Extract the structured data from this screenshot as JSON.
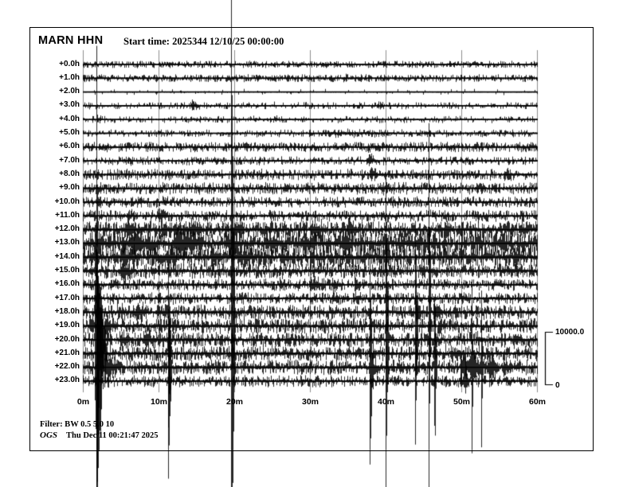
{
  "header": {
    "station": "MARN HHN",
    "start_time": "Start time: 2025344 12/10/25 00:00:00"
  },
  "footer": {
    "filter_line": "Filter: BW 0.5 5.0 10",
    "agency": "OGS",
    "timestamp_line": "Thu Dec 11 00:21:47 2025"
  },
  "scale_bar": {
    "max_label": "10000.0",
    "min_label": "0"
  },
  "colors": {
    "background": "#ffffff",
    "trace": "#000000",
    "frame": "#000000",
    "grid": "#8c8c8c"
  },
  "chart_data": {
    "type": "line",
    "variant": "helicorder seismogram, 24 hourly traces, 60 minutes per line",
    "title": "MARN HHN",
    "station": "MARN",
    "channel": "HHN",
    "start": "2025344 12/10/25 00:00:00",
    "x_ticks": [
      "0m",
      "10m",
      "20m",
      "30m",
      "40m",
      "50m",
      "60m"
    ],
    "x_tick_minutes": [
      0,
      10,
      20,
      30,
      40,
      50,
      60
    ],
    "xlim": [
      0,
      60
    ],
    "minutes_per_line": 60,
    "hours": 24,
    "amplitude_scale_counts": {
      "min": 0,
      "max": 10000
    },
    "rows": [
      {
        "label": "+0.0h",
        "base": 140,
        "tp": 0.45,
        "ta": 280,
        "events": []
      },
      {
        "label": "+1.0h",
        "base": 160,
        "tp": 0.5,
        "ta": 300,
        "events": [
          [
            34,
            6,
            400
          ]
        ]
      },
      {
        "label": "+2.0h",
        "base": 100,
        "tp": 0.08,
        "ta": 250,
        "events": []
      },
      {
        "label": "+3.0h",
        "base": 140,
        "tp": 0.3,
        "ta": 280,
        "events": [
          [
            14.2,
            2,
            900
          ],
          [
            25,
            1,
            350
          ],
          [
            38.8,
            1.5,
            500
          ],
          [
            53.8,
            1.2,
            600
          ]
        ]
      },
      {
        "label": "+4.0h",
        "base": 140,
        "tp": 0.3,
        "ta": 280,
        "events": [
          [
            1.8,
            0.8,
            1000
          ],
          [
            20.5,
            0.8,
            400
          ],
          [
            22.5,
            1.5,
            500
          ],
          [
            25.2,
            1.4,
            500
          ],
          [
            46.5,
            1,
            380
          ],
          [
            56.2,
            0.8,
            600
          ]
        ]
      },
      {
        "label": "+5.0h",
        "base": 150,
        "tp": 0.35,
        "ta": 300,
        "events": [
          [
            30,
            30,
            350
          ],
          [
            45,
            2,
            400
          ]
        ]
      },
      {
        "label": "+6.0h",
        "base": 240,
        "tp": 0.5,
        "ta": 380,
        "events": [
          [
            37.5,
            1,
            550
          ]
        ]
      },
      {
        "label": "+7.0h",
        "base": 200,
        "tp": 0.4,
        "ta": 330,
        "events": [
          [
            6.3,
            0.4,
            650
          ],
          [
            30,
            1,
            450
          ],
          [
            37.6,
            1.8,
            1100
          ],
          [
            56,
            1,
            450
          ]
        ]
      },
      {
        "label": "+8.0h",
        "base": 260,
        "tp": 0.45,
        "ta": 420,
        "events": [
          [
            8,
            1,
            500
          ],
          [
            23,
            1,
            500
          ],
          [
            37.8,
            2.2,
            950
          ],
          [
            44,
            1,
            500
          ],
          [
            55.5,
            2.5,
            800
          ]
        ]
      },
      {
        "label": "+9.0h",
        "base": 280,
        "tp": 0.5,
        "ta": 450,
        "events": [
          [
            33,
            1,
            500
          ],
          [
            39.3,
            2,
            950
          ],
          [
            47,
            1,
            500
          ],
          [
            58,
            1,
            600
          ]
        ]
      },
      {
        "label": "+10.0h",
        "base": 260,
        "tp": 0.45,
        "ta": 420,
        "events": [
          [
            2,
            1,
            650
          ],
          [
            10.4,
            1.6,
            800
          ],
          [
            28.4,
            1,
            650
          ],
          [
            44.5,
            1,
            500
          ],
          [
            58,
            1,
            500
          ]
        ]
      },
      {
        "label": "+11.0h",
        "base": 280,
        "tp": 0.45,
        "ta": 450,
        "events": [
          [
            5.8,
            2,
            800
          ],
          [
            9.8,
            2.2,
            950
          ],
          [
            21,
            1,
            650
          ],
          [
            40,
            1,
            550
          ],
          [
            52,
            1,
            650
          ]
        ]
      },
      {
        "label": "+12.0h",
        "base": 420,
        "tp": 0.55,
        "ta": 650,
        "events": [
          [
            1.5,
            1,
            1200
          ],
          [
            5.5,
            4,
            1500
          ],
          [
            10.4,
            2,
            1200
          ],
          [
            14,
            3,
            1400
          ],
          [
            19.8,
            3,
            1500
          ],
          [
            24,
            2,
            1200
          ],
          [
            30,
            4,
            1500
          ],
          [
            34.8,
            3,
            1400
          ],
          [
            48,
            2,
            900
          ],
          [
            54.8,
            2,
            900
          ],
          [
            57.8,
            2,
            1200
          ]
        ]
      },
      {
        "label": "+13.0h",
        "base": 560,
        "tp": 0.6,
        "ta": 850,
        "events": [
          [
            1.8,
            3,
            1500
          ],
          [
            6,
            5,
            2100
          ],
          [
            12,
            6,
            2400
          ],
          [
            18.8,
            4,
            2100
          ],
          [
            23.8,
            4,
            1800
          ],
          [
            28.8,
            4,
            2100
          ],
          [
            33.8,
            4,
            1800
          ],
          [
            43.8,
            3,
            1200
          ],
          [
            49.8,
            2,
            1200
          ],
          [
            54.8,
            3,
            1500
          ]
        ]
      },
      {
        "label": "+14.0h",
        "base": 500,
        "tp": 0.55,
        "ta": 780,
        "events": [
          [
            0.8,
            2,
            1200
          ],
          [
            4.8,
            5,
            1800
          ],
          [
            10.8,
            4,
            1500
          ],
          [
            16.8,
            3,
            1800
          ],
          [
            20.8,
            4,
            1500
          ],
          [
            25.8,
            3,
            1200
          ],
          [
            29.8,
            3,
            1200
          ],
          [
            34.8,
            2,
            950
          ],
          [
            39.8,
            2,
            950
          ],
          [
            46.8,
            2,
            800
          ],
          [
            52.8,
            3,
            1200
          ],
          [
            56.8,
            2,
            1200
          ]
        ]
      },
      {
        "label": "+15.0h",
        "base": 360,
        "tp": 0.5,
        "ta": 580,
        "events": [
          [
            0.8,
            2,
            950
          ],
          [
            4.8,
            3,
            1500
          ],
          [
            8.8,
            2,
            950
          ],
          [
            12.8,
            1,
            800
          ],
          [
            21.8,
            1,
            650
          ],
          [
            30.8,
            2,
            800
          ],
          [
            41.8,
            1,
            950
          ],
          [
            44.8,
            1,
            800
          ]
        ]
      },
      {
        "label": "+16.0h",
        "base": 280,
        "tp": 0.45,
        "ta": 450,
        "events": [
          [
            11.8,
            1,
            650
          ],
          [
            25.8,
            2,
            950
          ],
          [
            29.8,
            3,
            1250
          ],
          [
            32.8,
            2,
            950
          ],
          [
            35.8,
            2,
            1100
          ],
          [
            38.8,
            1,
            800
          ],
          [
            47.8,
            1,
            650
          ]
        ]
      },
      {
        "label": "+17.0h",
        "base": 280,
        "tp": 0.45,
        "ta": 450,
        "events": [
          [
            3.8,
            1,
            650
          ],
          [
            20.8,
            1,
            650
          ],
          [
            32.8,
            2,
            950
          ],
          [
            35.8,
            2,
            950
          ],
          [
            39.8,
            1,
            800
          ],
          [
            43.8,
            1,
            650
          ],
          [
            49.8,
            2,
            800
          ]
        ]
      },
      {
        "label": "+18.0h",
        "base": 360,
        "tp": 0.5,
        "ta": 580,
        "events": [
          [
            1.4,
            1,
            1500
          ],
          [
            4.8,
            2,
            1250
          ],
          [
            6.8,
            3,
            1500
          ],
          [
            9.8,
            2,
            1250
          ],
          [
            37.8,
            1,
            950
          ],
          [
            43.8,
            2,
            1800
          ],
          [
            45.6,
            0.35,
            52000
          ],
          [
            46.2,
            2.5,
            1500
          ],
          [
            48.8,
            2,
            1250
          ],
          [
            54.8,
            1,
            800
          ]
        ]
      },
      {
        "label": "+19.0h",
        "base": 360,
        "tp": 0.5,
        "ta": 580,
        "events": [
          [
            0.8,
            2,
            1500
          ],
          [
            2.8,
            2,
            1800
          ],
          [
            11.2,
            0.5,
            3000
          ],
          [
            19.5,
            0.5,
            91000
          ],
          [
            43.8,
            0.5,
            28000
          ],
          [
            46.8,
            2,
            1250
          ],
          [
            51.8,
            1,
            800
          ]
        ]
      },
      {
        "label": "+20.0h",
        "base": 360,
        "tp": 0.5,
        "ta": 580,
        "events": [
          [
            1.5,
            1.5,
            20000
          ],
          [
            4.8,
            3,
            1500
          ],
          [
            7.8,
            3,
            1800
          ],
          [
            10.8,
            2,
            1250
          ],
          [
            19.6,
            0.3,
            3000
          ],
          [
            39.9,
            0.5,
            38000
          ],
          [
            46.4,
            1,
            950
          ],
          [
            51.8,
            2,
            950
          ],
          [
            56.8,
            2,
            1250
          ]
        ]
      },
      {
        "label": "+21.0h",
        "base": 360,
        "tp": 0.5,
        "ta": 580,
        "events": [
          [
            1.7,
            0.35,
            91000
          ],
          [
            2.2,
            0.9,
            15000
          ],
          [
            11.2,
            0.6,
            6000
          ],
          [
            19.6,
            0.4,
            4500
          ],
          [
            29.8,
            1,
            800
          ],
          [
            39.9,
            0.3,
            3000
          ],
          [
            43.8,
            0.4,
            6000
          ],
          [
            48.5,
            2.5,
            1400
          ],
          [
            53.3,
            0.8,
            1600
          ]
        ]
      },
      {
        "label": "+22.0h",
        "base": 360,
        "tp": 0.5,
        "ta": 580,
        "events": [
          [
            1.7,
            1,
            30000
          ],
          [
            2.8,
            2,
            4500
          ],
          [
            11.2,
            0.5,
            25000
          ],
          [
            29.8,
            1,
            800
          ],
          [
            37.8,
            0.6,
            25000
          ],
          [
            43.8,
            0.3,
            4500
          ],
          [
            46.4,
            0.4,
            21000
          ],
          [
            49.8,
            1.5,
            3600
          ],
          [
            51,
            2.5,
            3300
          ],
          [
            51.3,
            0.3,
            23000
          ],
          [
            52.6,
            0.25,
            15000
          ],
          [
            53.5,
            2,
            2400
          ],
          [
            55.5,
            2,
            1800
          ]
        ]
      },
      {
        "label": "+23.0h",
        "base": 280,
        "tp": 0.45,
        "ta": 450,
        "events": [
          [
            1.7,
            0.5,
            20000
          ],
          [
            7.8,
            1,
            650
          ],
          [
            11.2,
            0.4,
            12000
          ],
          [
            19.8,
            1,
            650
          ],
          [
            29.8,
            1,
            650
          ],
          [
            37.8,
            1,
            800
          ],
          [
            49.8,
            1,
            1250
          ],
          [
            50.5,
            0.3,
            6000
          ],
          [
            52.8,
            1,
            950
          ]
        ]
      }
    ]
  }
}
